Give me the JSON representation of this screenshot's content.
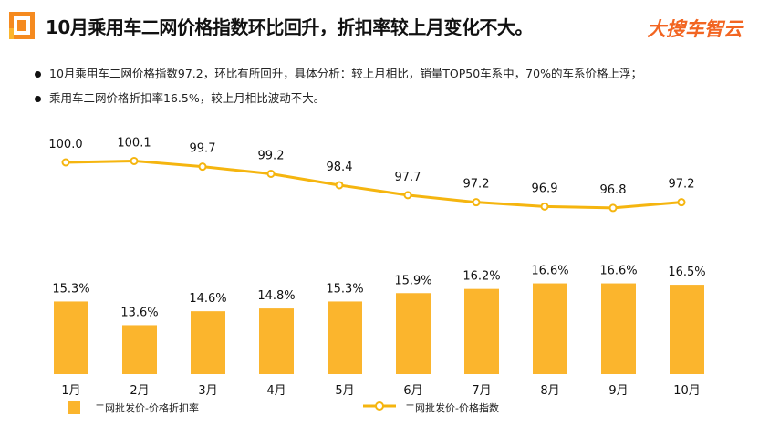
{
  "header": {
    "title": "10月乘用车二网价格指数环比回升，折扣率较上月变化不大。",
    "brand": "大搜车智云"
  },
  "bullets": [
    "10月乘用车二网价格指数97.2，环比有所回升，具体分析：较上月相比，销量TOP50车系中，70%的车系价格上浮；",
    "乘用车二网价格折扣率16.5%，较上月相比波动不大。"
  ],
  "colors": {
    "bar": "#fbb52d",
    "line": "#f5b50f",
    "accent": "#f58a1f"
  },
  "chart_data": {
    "type": "bar+line",
    "categories": [
      "1月",
      "2月",
      "3月",
      "4月",
      "5月",
      "6月",
      "7月",
      "8月",
      "9月",
      "10月"
    ],
    "series": [
      {
        "name": "二网批发价-价格折扣率",
        "type": "bar",
        "values": [
          15.3,
          13.6,
          14.6,
          14.8,
          15.3,
          15.9,
          16.2,
          16.6,
          16.6,
          16.5
        ],
        "labels": [
          "15.3%",
          "13.6%",
          "14.6%",
          "14.8%",
          "15.3%",
          "15.9%",
          "16.2%",
          "16.6%",
          "16.6%",
          "16.5%"
        ]
      },
      {
        "name": "二网批发价-价格指数",
        "type": "line",
        "values": [
          100.0,
          100.1,
          99.7,
          99.2,
          98.4,
          97.7,
          97.2,
          96.9,
          96.8,
          97.2
        ],
        "labels": [
          "100.0",
          "100.1",
          "99.7",
          "99.2",
          "98.4",
          "97.7",
          "97.2",
          "96.9",
          "96.8",
          "97.2"
        ]
      }
    ],
    "legend": "bottom"
  }
}
